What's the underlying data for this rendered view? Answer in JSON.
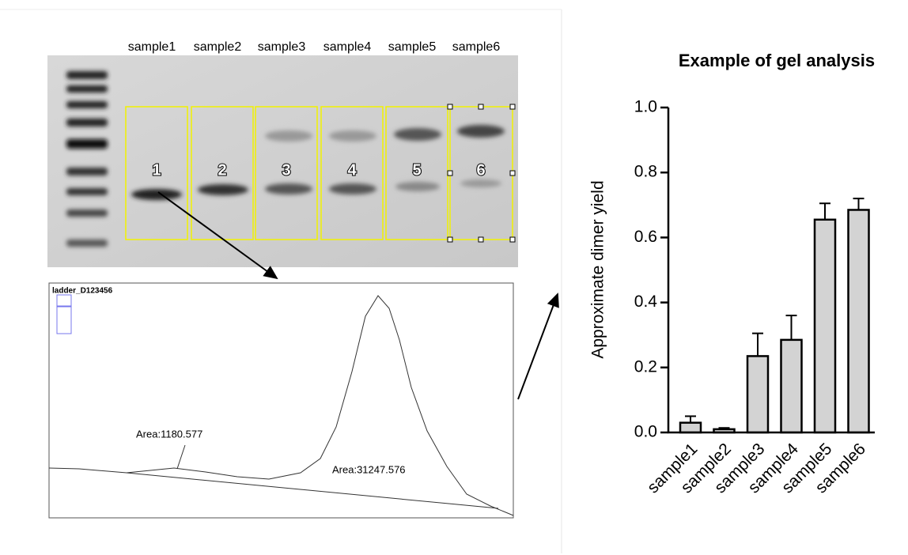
{
  "gel": {
    "lanes": [
      "sample1",
      "sample2",
      "sample3",
      "sample4",
      "sample5",
      "sample6"
    ],
    "lane_numbers": [
      "1",
      "2",
      "3",
      "4",
      "5",
      "6"
    ]
  },
  "trace": {
    "title": "ladder_D123456",
    "peak_labels": [
      "Area:1180.577",
      "Area:31247.576"
    ]
  },
  "chart_data": {
    "type": "bar",
    "title": "Example of gel analysis",
    "y_label": "Approximate dimer yield",
    "categories": [
      "sample1",
      "sample2",
      "sample3",
      "sample4",
      "sample5",
      "sample6"
    ],
    "values": [
      0.03,
      0.01,
      0.235,
      0.285,
      0.655,
      0.685
    ],
    "errors": [
      0.02,
      0.004,
      0.07,
      0.075,
      0.05,
      0.035
    ],
    "color": "#d3d3d3",
    "ylim": [
      0,
      1.0
    ],
    "yticks": [
      {
        "value": 0,
        "label": "0.0"
      },
      0.2,
      0.4,
      0.6,
      0.8,
      {
        "value": 1.0,
        "label": "1.0"
      }
    ]
  }
}
